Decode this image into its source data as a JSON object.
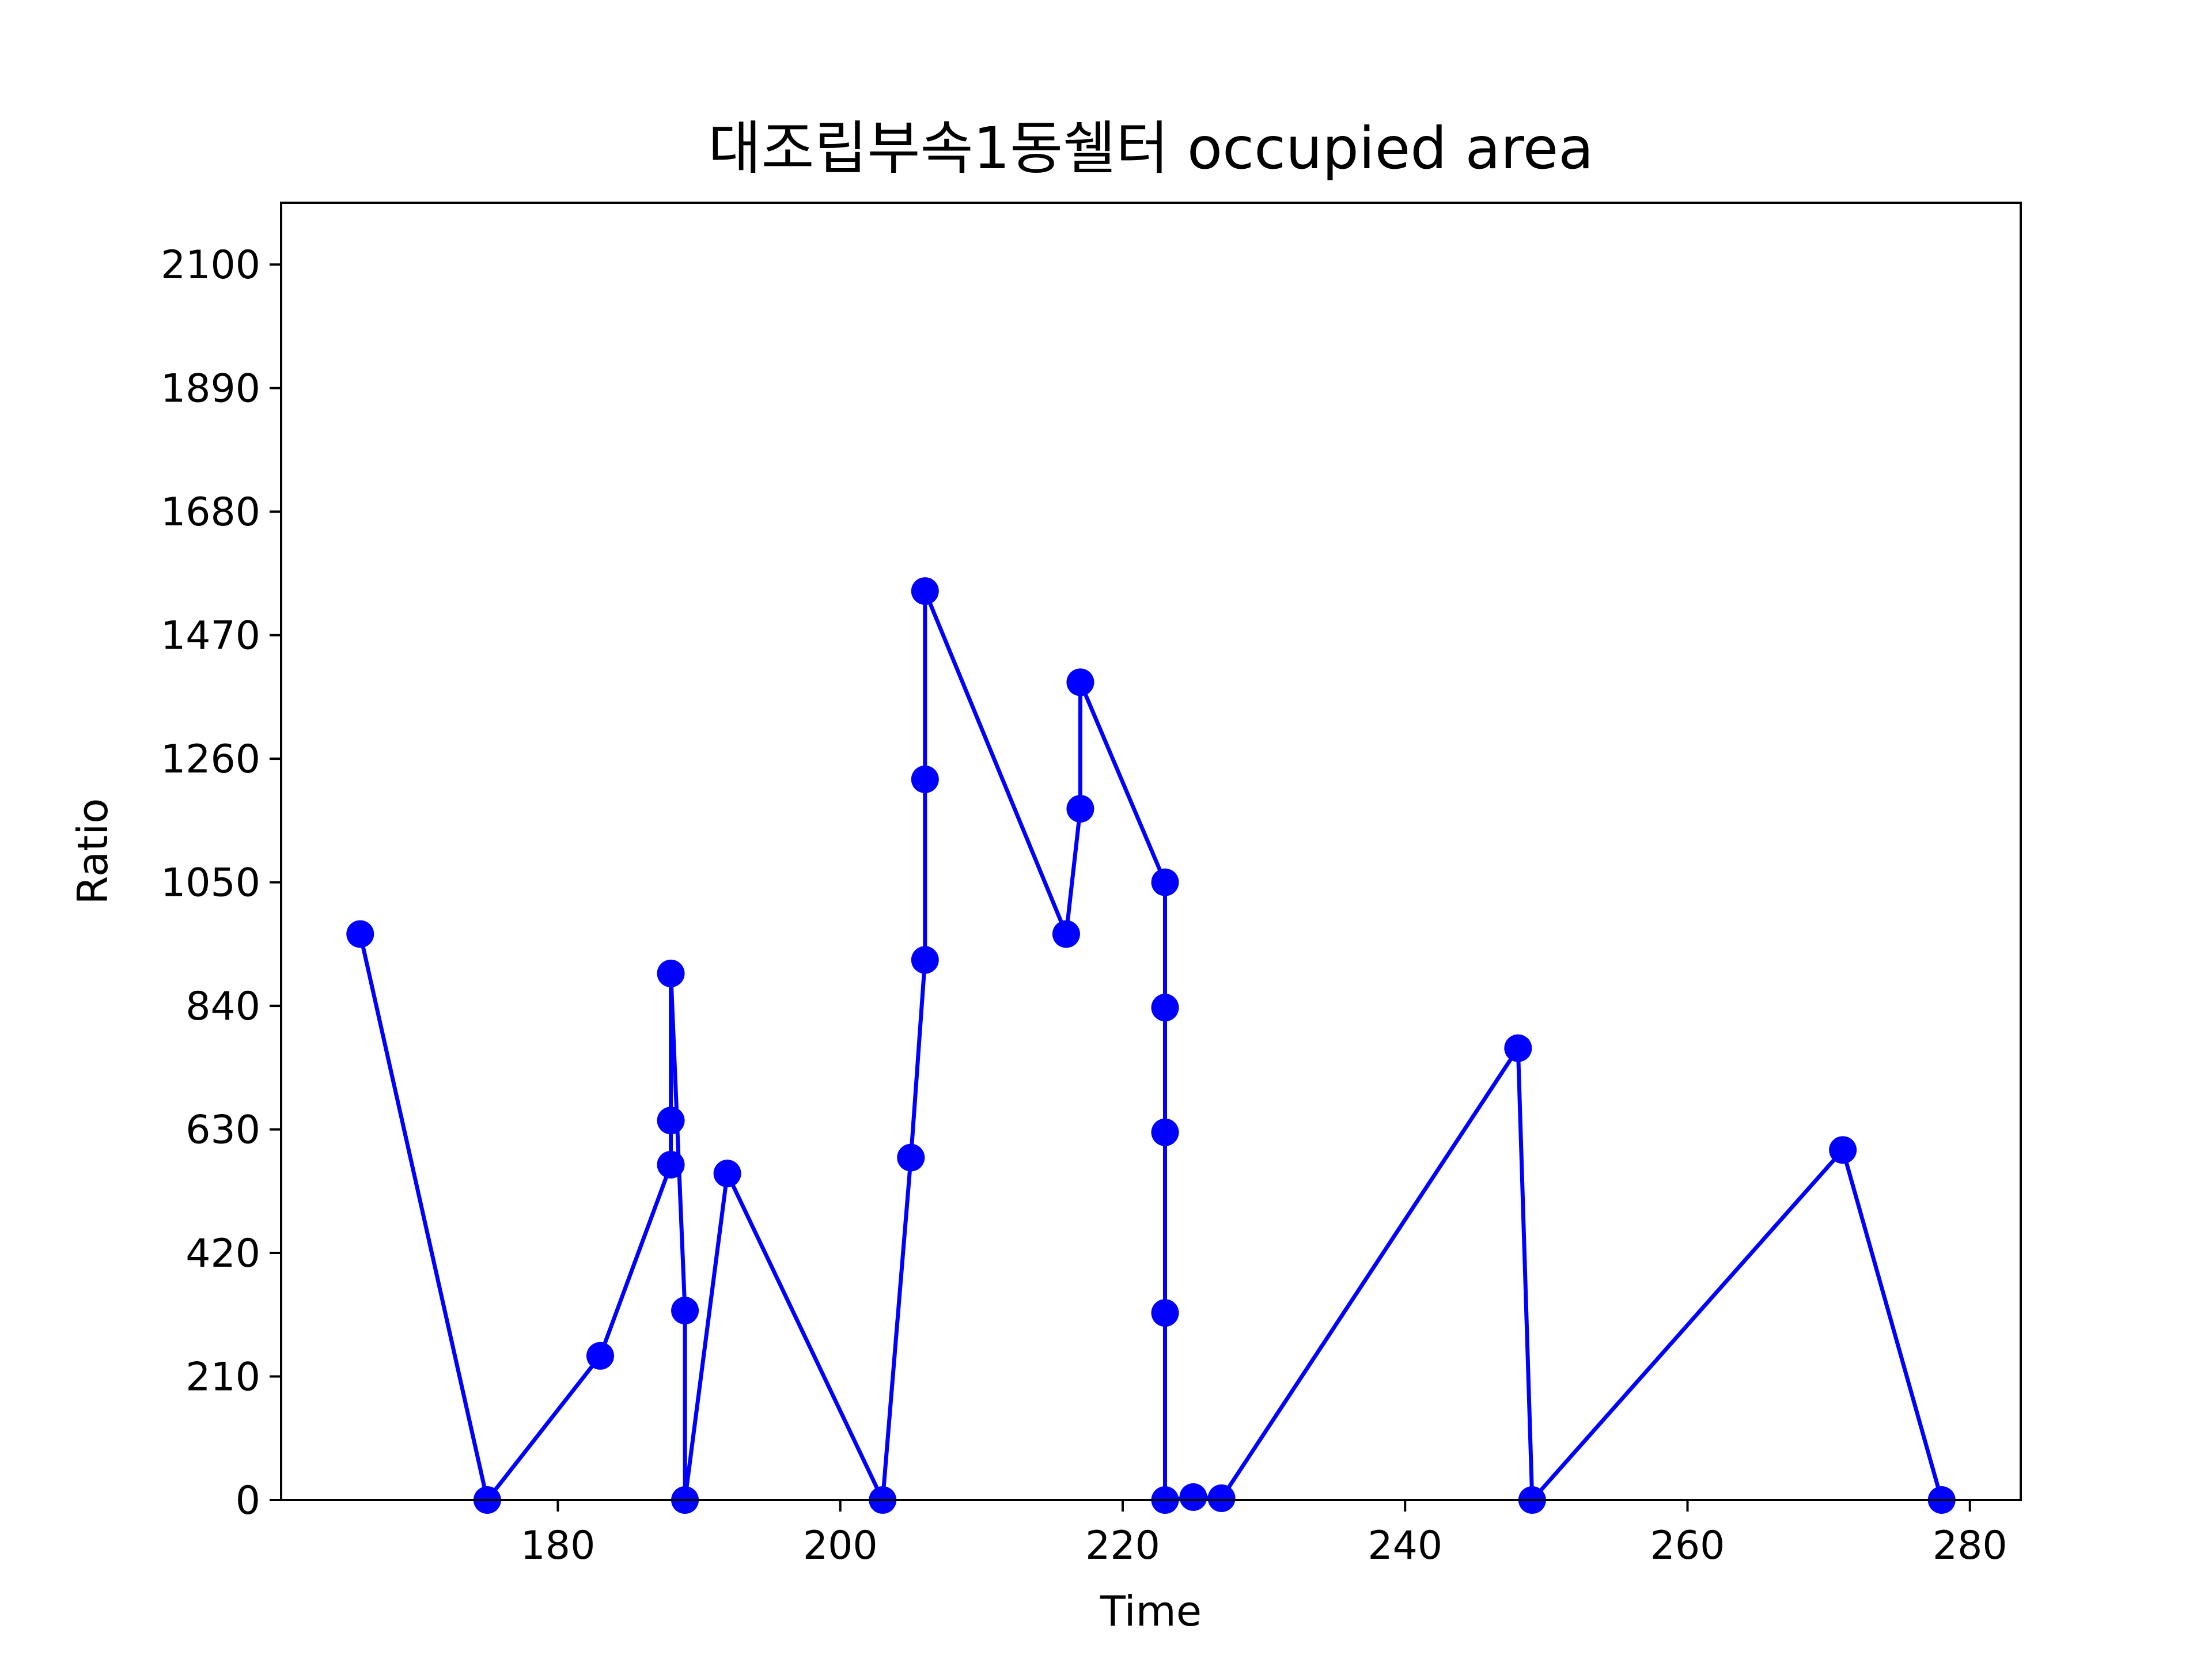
{
  "chart_data": {
    "type": "line",
    "title": "대조립부속1동쉘터 occupied area",
    "xlabel": "Time",
    "ylabel": "Ratio",
    "xlim": [
      160.4,
      283.6
    ],
    "ylim": [
      0,
      2205
    ],
    "xticks": [
      180,
      200,
      220,
      240,
      260,
      280
    ],
    "yticks": [
      0,
      210,
      420,
      630,
      840,
      1050,
      1260,
      1470,
      1680,
      1890,
      2100
    ],
    "grid": false,
    "legend": "none",
    "series": [
      {
        "color": "#0000ff",
        "marker": "circle",
        "x": [
          166,
          175,
          183,
          188,
          188,
          188,
          189,
          189,
          192,
          203,
          205,
          206,
          206,
          206,
          216,
          217,
          217,
          223,
          223,
          223,
          223,
          223,
          225,
          227,
          248,
          249,
          271,
          278
        ],
        "y": [
          962,
          0,
          245,
          570,
          645,
          895,
          322,
          0,
          555,
          0,
          582,
          918,
          1225,
          1545,
          962,
          1175,
          1390,
          1050,
          837,
          625,
          318,
          0,
          5,
          3,
          768,
          0,
          595,
          0
        ]
      }
    ]
  }
}
